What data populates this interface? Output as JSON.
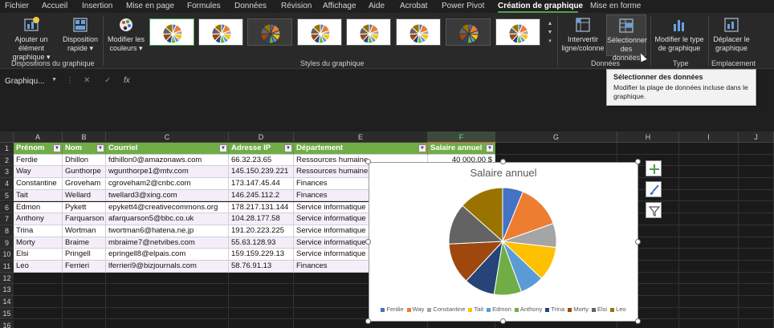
{
  "menu": {
    "tabs": [
      "Fichier",
      "Accueil",
      "Insertion",
      "Mise en page",
      "Formules",
      "Données",
      "Révision",
      "Affichage",
      "Aide",
      "Acrobat",
      "Power Pivot",
      "Création de graphique",
      "Mise en forme"
    ],
    "active_index": 11
  },
  "ribbon": {
    "add_element": "Ajouter un élément graphique",
    "quick_layout": "Disposition rapide",
    "group_layouts": "Dispositions du graphique",
    "change_colors": "Modifier les couleurs",
    "group_styles": "Styles du graphique",
    "switch_row_col": "Intervertir ligne/colonne",
    "select_data": "Sélectionner des données",
    "group_data": "Données",
    "change_type": "Modifier le type de graphique",
    "group_type": "Type",
    "move_chart": "Déplacer le graphique",
    "group_location": "Emplacement"
  },
  "tooltip": {
    "title": "Sélectionner des données",
    "body": "Modifier la plage de données incluse dans le graphique."
  },
  "formula_bar": {
    "name_box": "Graphiqu...",
    "cancel": "✕",
    "enter": "✓",
    "fx": "fx"
  },
  "sheet": {
    "columns": [
      "A",
      "B",
      "C",
      "D",
      "E",
      "F",
      "G",
      "H",
      "I",
      "J"
    ],
    "rows": [
      "1",
      "2",
      "3",
      "4",
      "5",
      "6",
      "7",
      "8",
      "9",
      "10",
      "11",
      "12",
      "13",
      "14",
      "15",
      "16"
    ],
    "headers": [
      "Prénom",
      "Nom",
      "Courriel",
      "Adresse IP",
      "Département",
      "Salaire annuel"
    ],
    "data": [
      [
        "Ferdie",
        "Dhillon",
        "fdhillon0@amazonaws.com",
        "66.32.23.65",
        "Ressources humaine"
      ],
      [
        "Way",
        "Gunthorpe",
        "wgunthorpe1@mtv.com",
        "145.150.239.221",
        "Ressources humaine"
      ],
      [
        "Constantine",
        "Groveham",
        "cgroveham2@cnbc.com",
        "173.147.45.44",
        "Finances"
      ],
      [
        "Tait",
        "Wellard",
        "twellard3@xing.com",
        "146.245.112.2",
        "Finances"
      ],
      [
        "Edmon",
        "Pykett",
        "epykett4@creativecommons.org",
        "178.217.131.144",
        "Service informatique"
      ],
      [
        "Anthony",
        "Farquarson",
        "afarquarson5@bbc.co.uk",
        "104.28.177.58",
        "Service informatique"
      ],
      [
        "Trina",
        "Wortman",
        "twortman6@hatena.ne.jp",
        "191.20.223.225",
        "Service informatique"
      ],
      [
        "Morty",
        "Braime",
        "mbraime7@netvibes.com",
        "55.63.128.93",
        "Service informatique"
      ],
      [
        "Elsi",
        "Pringell",
        "epringell8@elpais.com",
        "159.159.229.13",
        "Service informatique"
      ],
      [
        "Leo",
        "Ferrieri",
        "lferrieri9@bizjournals.com",
        "58.76.91.13",
        "Finances"
      ]
    ],
    "f2_partial": "40 000,00 $"
  },
  "chart_data": {
    "type": "pie",
    "title": "Salaire annuel",
    "categories": [
      "Ferdie",
      "Way",
      "Constantine",
      "Tait",
      "Edmon",
      "Anthony",
      "Trina",
      "Morty",
      "Elsi",
      "Leo"
    ],
    "values": [
      6,
      13,
      7,
      10,
      7,
      8,
      9,
      12,
      12,
      13
    ],
    "colors": [
      "#4472c4",
      "#ed7d31",
      "#a5a5a5",
      "#ffc000",
      "#5b9bd5",
      "#70ad47",
      "#264478",
      "#9e480e",
      "#636363",
      "#997300"
    ],
    "legend_position": "bottom"
  }
}
